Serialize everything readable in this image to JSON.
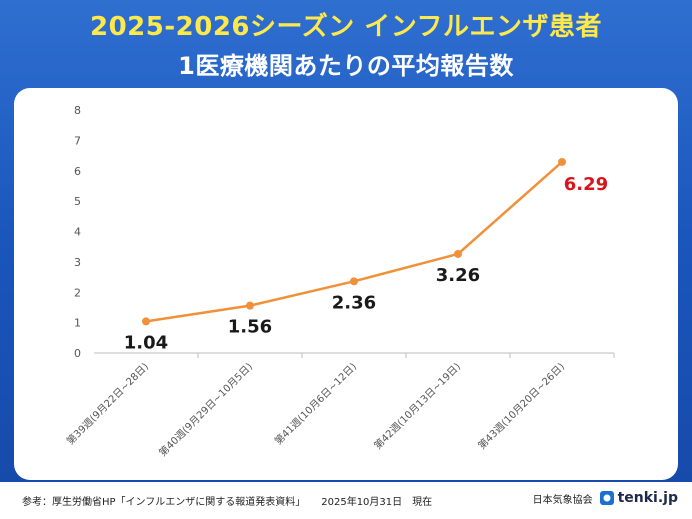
{
  "header": {
    "title_line1": "2025-2026シーズン インフルエンザ患者",
    "title_line2": "1医療機関あたりの平均報告数"
  },
  "chart_data": {
    "type": "line",
    "categories": [
      "第39週(9月22日~28日)",
      "第40週(9月29日~10月5日)",
      "第41週(10月6日~12日)",
      "第42週(10月13日~19日)",
      "第43週(10月20日~26日)"
    ],
    "values": [
      1.04,
      1.56,
      2.36,
      3.26,
      6.29
    ],
    "data_labels": [
      "1.04",
      "1.56",
      "2.36",
      "3.26",
      "6.29"
    ],
    "y_ticks": [
      "0",
      "1",
      "2",
      "3",
      "4",
      "5",
      "6",
      "7",
      "8"
    ],
    "ylim": [
      0,
      8
    ],
    "grid": false,
    "line_color": "#f0913a",
    "label_color": "#1a1a1a",
    "highlight_color": "#d9141b"
  },
  "footer": {
    "source": "参考：厚生労働省HP「インフルエンザに関する報道発表資料」",
    "date": "2025年10月31日　現在",
    "org": "日本気象協会",
    "brand": "tenki.jp"
  }
}
